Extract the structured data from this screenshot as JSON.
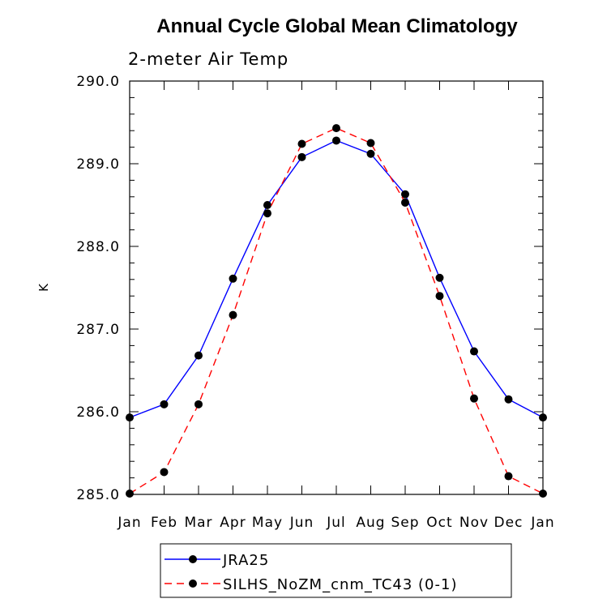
{
  "chart_data": {
    "type": "line",
    "title": "Annual Cycle Global Mean Climatology",
    "subtitle": "2-meter Air Temp",
    "xlabel": "",
    "ylabel": "K",
    "categories": [
      "Jan",
      "Feb",
      "Mar",
      "Apr",
      "May",
      "Jun",
      "Jul",
      "Aug",
      "Sep",
      "Oct",
      "Nov",
      "Dec",
      "Jan"
    ],
    "ylim": [
      285.0,
      290.0
    ],
    "yticks": [
      "285.0",
      "286.0",
      "287.0",
      "288.0",
      "289.0",
      "290.0"
    ],
    "grid": false,
    "legend_position": "bottom",
    "series": [
      {
        "name": "JRA25",
        "color": "#0000ff",
        "style": "solid",
        "values": [
          285.93,
          286.09,
          286.68,
          287.61,
          288.5,
          289.08,
          289.28,
          289.12,
          288.63,
          287.62,
          286.73,
          286.15,
          285.93
        ]
      },
      {
        "name": "SILHS_NoZM_cnm_TC43 (0-1)",
        "color": "#ff0000",
        "style": "dashed",
        "values": [
          285.01,
          285.27,
          286.09,
          287.17,
          288.4,
          289.24,
          289.43,
          289.25,
          288.53,
          287.4,
          286.16,
          285.22,
          285.01
        ]
      }
    ]
  }
}
